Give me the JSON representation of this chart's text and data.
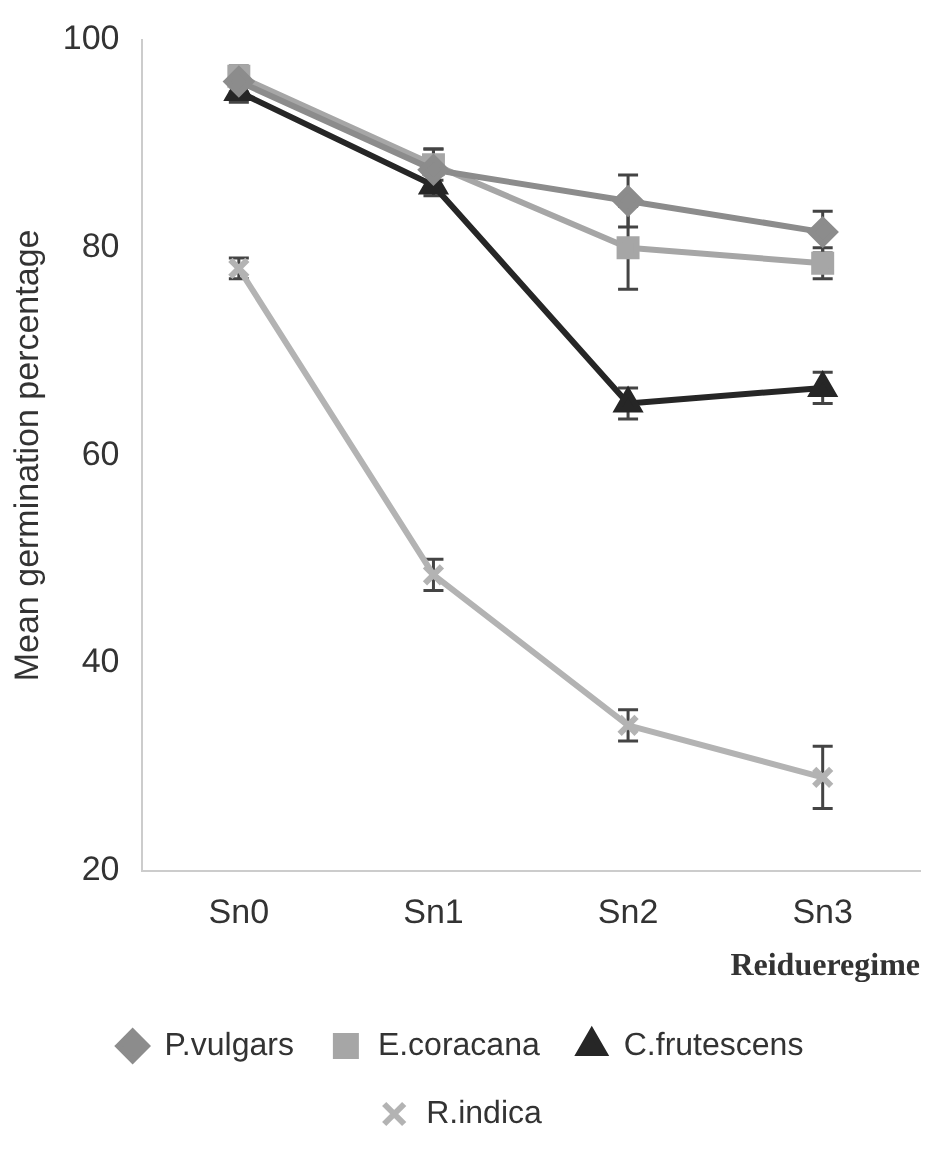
{
  "chart_data": {
    "type": "line",
    "xlabel": "Reidueregime",
    "ylabel": "Mean germination percentage",
    "categories": [
      "Sn0",
      "Sn1",
      "Sn2",
      "Sn3"
    ],
    "ylim": [
      20,
      100
    ],
    "yticks": [
      20,
      40,
      60,
      80,
      100
    ],
    "grid": false,
    "legend": "bottom",
    "series": [
      {
        "name": "P.vulgars",
        "color": "#8c8c8c",
        "marker": "diamond",
        "values": [
          96,
          87.5,
          84.5,
          81.5
        ],
        "errors": [
          1,
          2,
          2.5,
          2
        ]
      },
      {
        "name": "E.coracana",
        "color": "#a6a6a6",
        "marker": "square",
        "values": [
          96.5,
          88,
          80,
          78.5
        ],
        "errors": [
          1,
          1.5,
          4,
          1.5
        ]
      },
      {
        "name": "C.frutescens",
        "color": "#262626",
        "marker": "triangle",
        "values": [
          95,
          86,
          65,
          66.5
        ],
        "errors": [
          1,
          1,
          1.5,
          1.5
        ]
      },
      {
        "name": "R.indica",
        "color": "#b3b3b3",
        "marker": "cross",
        "values": [
          78,
          48.5,
          34,
          29
        ],
        "errors": [
          1,
          1.5,
          1.5,
          3
        ]
      }
    ]
  }
}
